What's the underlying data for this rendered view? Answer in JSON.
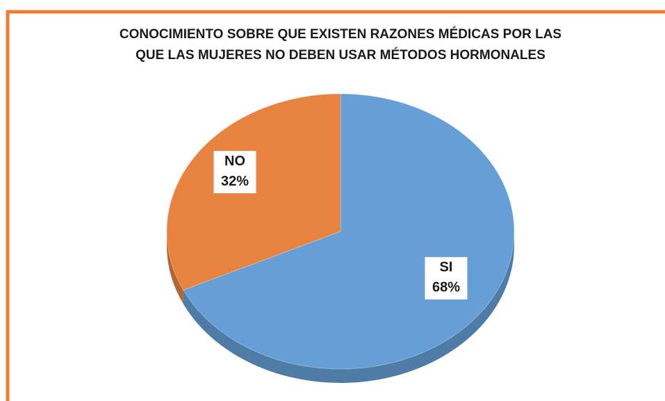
{
  "chart_data": {
    "type": "pie",
    "title": [
      "CONOCIMIENTO SOBRE QUE EXISTEN RAZONES MÉDICAS POR LAS",
      "QUE LAS MUJERES NO DEBEN USAR MÉTODOS HORMONALES"
    ],
    "categories": [
      "SI",
      "NO"
    ],
    "values": [
      68,
      32
    ],
    "value_labels": [
      "68%",
      "32%"
    ],
    "colors": [
      "#659fd6",
      "#e8823f"
    ]
  }
}
